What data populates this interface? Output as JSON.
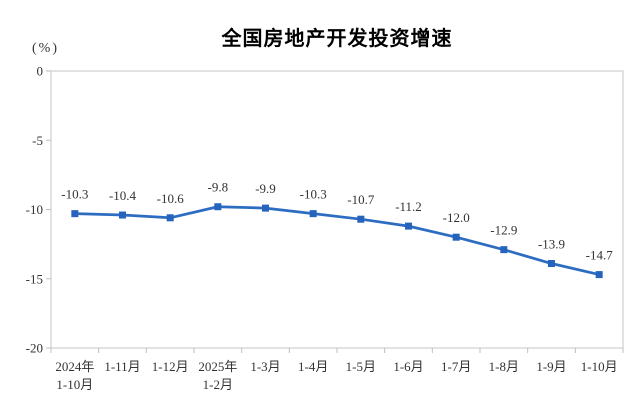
{
  "page": {
    "background": "#ffffff"
  },
  "chart_data": {
    "type": "line",
    "title": "全国房地产开发投资增速",
    "unit_label": "(%)",
    "categories": [
      "2024年\n1-10月",
      "1-11月",
      "1-12月",
      "2025年\n1-2月",
      "1-3月",
      "1-4月",
      "1-5月",
      "1-6月",
      "1-7月",
      "1-8月",
      "1-9月",
      "1-10月"
    ],
    "values": [
      -10.3,
      -10.4,
      -10.6,
      -9.8,
      -9.9,
      -10.3,
      -10.7,
      -11.2,
      -12.0,
      -12.9,
      -13.9,
      -14.7
    ],
    "labels": [
      "-10.3",
      "-10.4",
      "-10.6",
      "-9.8",
      "-9.9",
      "-10.3",
      "-10.7",
      "-11.2",
      "-12.0",
      "-12.9",
      "-13.9",
      "-14.7"
    ],
    "ylim": [
      -20,
      0
    ],
    "yticks": [
      0,
      -5,
      -10,
      -15,
      -20
    ],
    "grid": false,
    "legend": "none",
    "marker": "square",
    "colors": {
      "line": "#2D6DC1",
      "marker": "#2563BD",
      "axis": "#D9D9D9",
      "tick": "#BFBFBF",
      "text": "#333333",
      "title": "#000000"
    }
  }
}
